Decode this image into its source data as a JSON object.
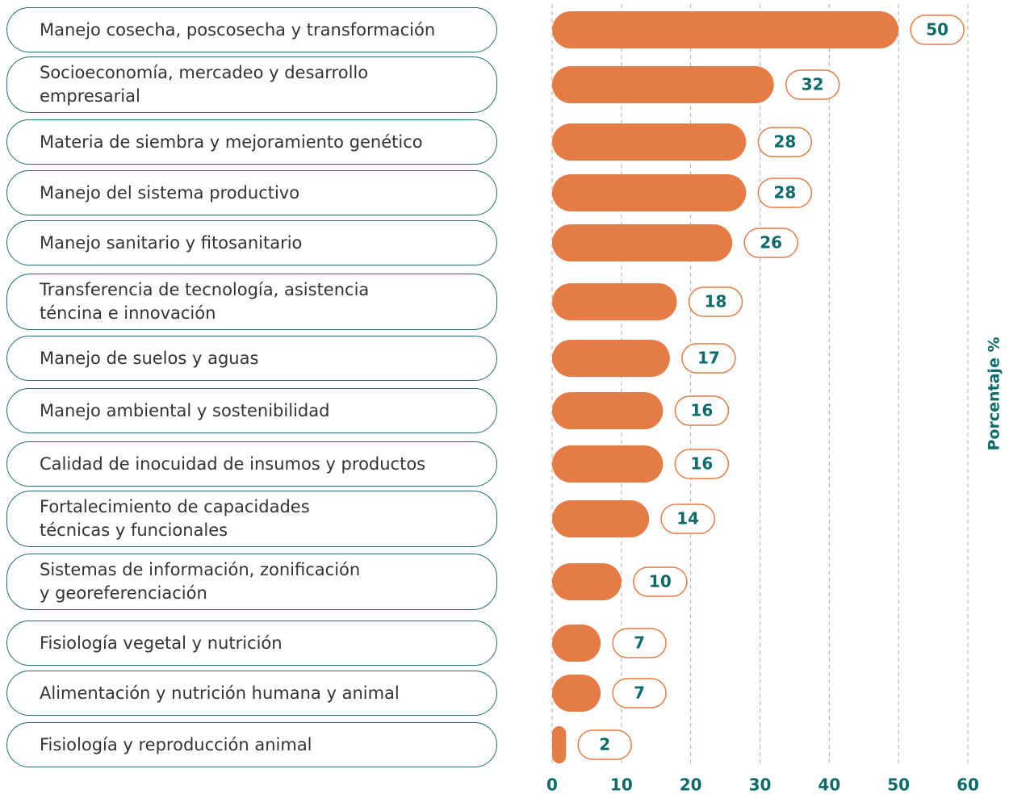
{
  "chart_data": {
    "type": "barh",
    "axis_label": "Porcentaje %",
    "categories": [
      "Manejo cosecha, poscosecha y transformación",
      "Socioeconomía, mercadeo y desarrollo\nempresarial",
      "Materia de siembra y mejoramiento genético",
      "Manejo del sistema productivo",
      "Manejo sanitario y fitosanitario",
      "Transferencia de tecnología, asistencia\nténcina e innovación",
      "Manejo de suelos y aguas",
      "Manejo ambiental y sostenibilidad",
      "Calidad de inocuidad de insumos y productos",
      "Fortalecimiento de capacidades\ntécnicas y funcionales",
      "Sistemas de información, zonificación\ny georeferenciación",
      "Fisiología vegetal y nutrición",
      "Alimentación y nutrición humana y animal",
      "Fisiología y reproducción animal"
    ],
    "values": [
      50,
      32,
      28,
      28,
      26,
      18,
      17,
      16,
      16,
      14,
      10,
      7,
      7,
      2
    ],
    "color": "#e57c45",
    "xlim": [
      0,
      60
    ],
    "xticks": [
      0,
      10,
      20,
      30,
      40,
      50,
      60
    ],
    "grid": true
  }
}
